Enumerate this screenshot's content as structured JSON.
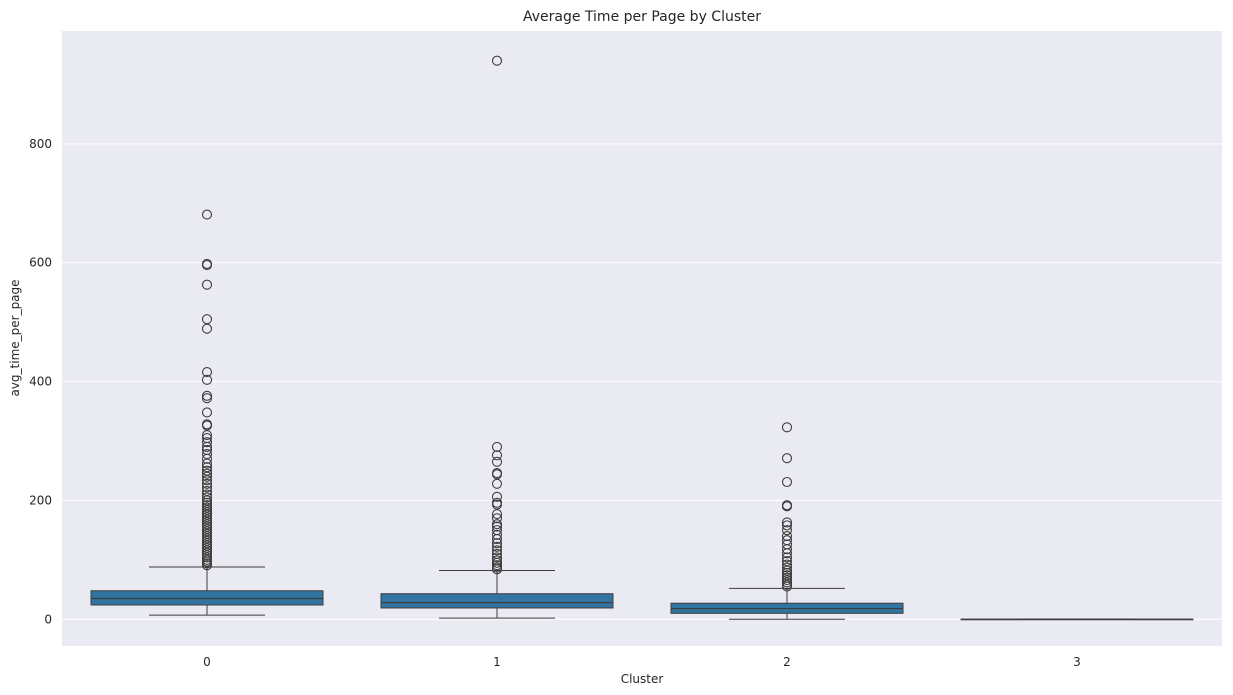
{
  "chart_data": {
    "type": "box",
    "title": "Average Time per Page by Cluster",
    "xlabel": "Cluster",
    "ylabel": "avg_time_per_page",
    "categories": [
      "0",
      "1",
      "2",
      "3"
    ],
    "ylim": [
      -45,
      990
    ],
    "yticks": [
      0,
      200,
      400,
      600,
      800
    ],
    "grid": true,
    "background": "#eaeaf2",
    "box_color": "#3274a1",
    "line_color": "#3d3d3d",
    "boxes": [
      {
        "category": "0",
        "whisker_low": 7,
        "q1": 24,
        "median": 35,
        "q3": 48,
        "whisker_high": 88,
        "outliers": [
          681,
          598,
          596,
          563,
          505,
          489,
          416,
          403,
          376,
          372,
          348,
          328,
          326,
          310,
          305,
          298,
          290,
          285,
          278,
          270,
          262,
          256,
          250,
          245,
          240,
          234,
          228,
          222,
          216,
          210,
          205,
          200,
          196,
          192,
          188,
          184,
          180,
          176,
          172,
          168,
          164,
          160,
          156,
          152,
          148,
          144,
          140,
          136,
          132,
          128,
          124,
          120,
          116,
          112,
          108,
          104,
          100,
          97,
          94,
          91
        ]
      },
      {
        "category": "1",
        "whisker_low": 2,
        "q1": 19,
        "median": 28,
        "q3": 43,
        "whisker_high": 82,
        "outliers": [
          940,
          290,
          276,
          265,
          246,
          244,
          228,
          206,
          196,
          193,
          177,
          170,
          160,
          156,
          150,
          142,
          135,
          128,
          122,
          116,
          110,
          104,
          99,
          95,
          91,
          87,
          84
        ]
      },
      {
        "category": "2",
        "whisker_low": 0,
        "q1": 10,
        "median": 18,
        "q3": 27,
        "whisker_high": 52,
        "outliers": [
          323,
          271,
          231,
          192,
          190,
          163,
          158,
          150,
          140,
          133,
          126,
          118,
          111,
          104,
          98,
          92,
          87,
          82,
          78,
          74,
          70,
          66,
          62,
          58,
          55
        ]
      },
      {
        "category": "3",
        "whisker_low": 0,
        "q1": 0,
        "median": 0,
        "q3": 0,
        "whisker_high": 0,
        "outliers": []
      }
    ]
  }
}
